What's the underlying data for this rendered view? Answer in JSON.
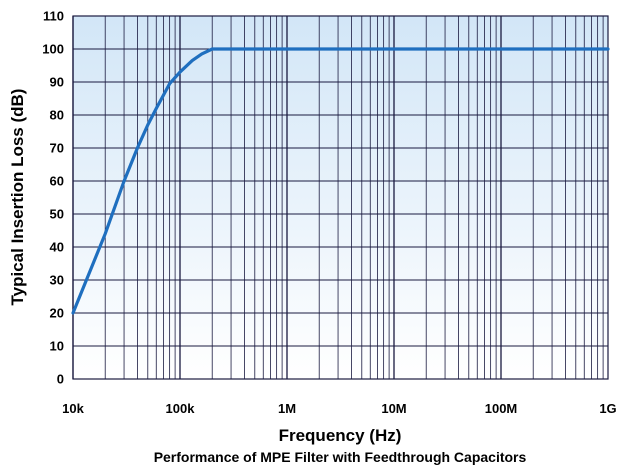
{
  "chart_data": {
    "type": "line",
    "title": "Performance of MPE Filter with Feedthrough Capacitors",
    "xlabel": "Frequency (Hz)",
    "ylabel": "Typical Insertion Loss (dB)",
    "x_scale": "log",
    "xlim": [
      10000,
      1000000000
    ],
    "ylim": [
      0,
      110
    ],
    "x_ticks": [
      10000,
      100000,
      1000000,
      10000000,
      100000000,
      1000000000
    ],
    "x_tick_labels": [
      "10k",
      "100k",
      "1M",
      "10M",
      "100M",
      "1G"
    ],
    "y_ticks": [
      0,
      10,
      20,
      30,
      40,
      50,
      60,
      70,
      80,
      90,
      100,
      110
    ],
    "grid": true,
    "legend": "none",
    "colors": {
      "line": "#1f6fbf",
      "plot_bg_top": "#d2e6f7",
      "plot_bg_bottom": "#ffffff",
      "grid": "#1a1a40"
    },
    "series": [
      {
        "x": [
          10000,
          20000,
          30000,
          40000,
          50000,
          60000,
          70000,
          80000,
          100000,
          130000,
          160000,
          200000,
          1000000,
          10000000,
          100000000,
          1000000000
        ],
        "y": [
          20,
          44,
          60,
          70,
          77,
          82,
          86,
          89.5,
          93,
          96.5,
          98.5,
          100,
          100,
          100,
          100,
          100
        ]
      }
    ]
  }
}
